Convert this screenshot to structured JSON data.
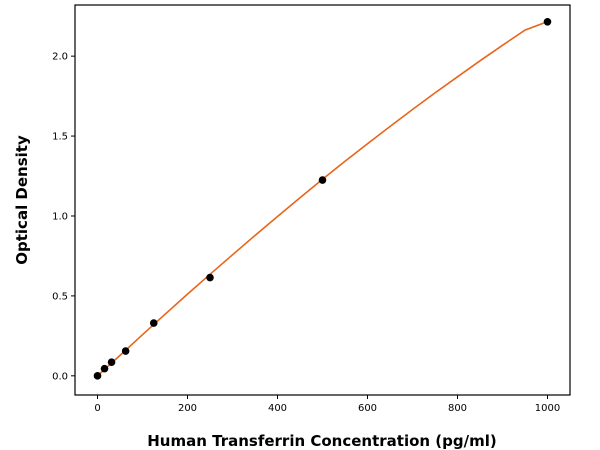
{
  "chart_data": {
    "type": "scatter",
    "xlabel": "Human Transferrin Concentration (pg/ml)",
    "ylabel": "Optical Density",
    "xlim": [
      -50,
      1050
    ],
    "ylim": [
      -0.12,
      2.32
    ],
    "xticks": [
      0,
      200,
      400,
      600,
      800,
      1000
    ],
    "yticks": [
      0.0,
      0.5,
      1.0,
      1.5,
      2.0
    ],
    "xtick_labels": [
      "0",
      "200",
      "400",
      "600",
      "800",
      "1000"
    ],
    "ytick_labels": [
      "0.0",
      "0.5",
      "1.0",
      "1.5",
      "2.0"
    ],
    "grid": false,
    "series": [
      {
        "type": "scatter",
        "x": [
          0,
          15.6,
          31.25,
          62.5,
          125,
          250,
          500,
          1000
        ],
        "y": [
          0.0,
          0.045,
          0.085,
          0.155,
          0.33,
          0.615,
          1.225,
          2.215
        ],
        "color": "#000000"
      },
      {
        "type": "line",
        "fit": "standard curve",
        "x": [
          0,
          50,
          100,
          150,
          200,
          250,
          300,
          350,
          400,
          450,
          500,
          550,
          600,
          650,
          700,
          750,
          800,
          850,
          900,
          950,
          1000
        ],
        "y": [
          0.0,
          0.128,
          0.257,
          0.385,
          0.511,
          0.635,
          0.757,
          0.878,
          0.997,
          1.114,
          1.23,
          1.342,
          1.452,
          1.56,
          1.666,
          1.77,
          1.871,
          1.971,
          2.068,
          2.163,
          2.216
        ],
        "color": "#e8651a"
      }
    ]
  }
}
